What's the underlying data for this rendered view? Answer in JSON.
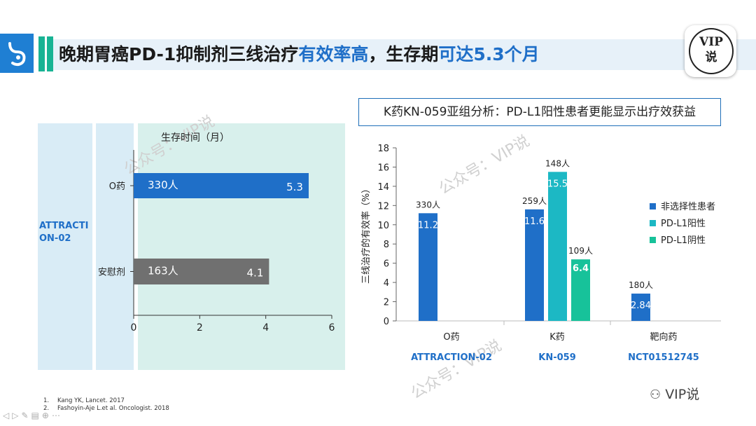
{
  "header": {
    "title_part1": "晚期胃癌PD-1抑制剂三线治疗",
    "title_hl1": "有效率高",
    "title_part2": "，生存期",
    "title_hl2": "可达5.3个月",
    "badge_line1": "VIP",
    "badge_line2": "说"
  },
  "left_chart": {
    "study": "ATTRACTION-02",
    "chart_data": {
      "type": "bar",
      "orientation": "horizontal",
      "title": "生存时间（月）",
      "categories": [
        "O药",
        "安慰剂"
      ],
      "values": [
        5.3,
        4.1
      ],
      "inner_labels": [
        "330人",
        "163人"
      ],
      "xlim": [
        0,
        6
      ],
      "xticks": [
        "0",
        "2",
        "4",
        "6"
      ],
      "colors": [
        "#1f6fc8",
        "#707070"
      ]
    }
  },
  "right_chart": {
    "subtitle": "K药KN-059亚组分析：PD-L1阳性患者更能显示出疗效获益",
    "chart_data": {
      "type": "bar",
      "ylabel": "三线治疗的有效率（%）",
      "ylim": [
        0,
        18
      ],
      "yticks": [
        "0",
        "2",
        "4",
        "6",
        "8",
        "10",
        "12",
        "14",
        "16",
        "18"
      ],
      "categories": [
        "O药",
        "K药",
        "靶向药"
      ],
      "studies": [
        "ATTRACTION-02",
        "KN-059",
        "NCT01512745"
      ],
      "series": [
        {
          "name": "非选择性患者",
          "color": "#1f6fc8",
          "values": [
            11.2,
            11.6,
            2.84
          ],
          "counts": [
            "330人",
            "259人",
            "180人"
          ]
        },
        {
          "name": "PD-L1阳性",
          "color": "#1cb8c4",
          "values": [
            null,
            15.5,
            null
          ],
          "counts": [
            null,
            "148人",
            null
          ]
        },
        {
          "name": "PD-L1阴性",
          "color": "#17c29a",
          "values": [
            null,
            6.4,
            null
          ],
          "counts": [
            null,
            "109人",
            null
          ]
        }
      ]
    }
  },
  "references": [
    {
      "num": "1.",
      "text": "Kang YK, Lancet. 2017"
    },
    {
      "num": "2.",
      "text": "Fashoyin-Aje L.et al. Oncologist. 2018"
    }
  ],
  "watermark": "公众号：VIP说",
  "brand": "VIP说"
}
